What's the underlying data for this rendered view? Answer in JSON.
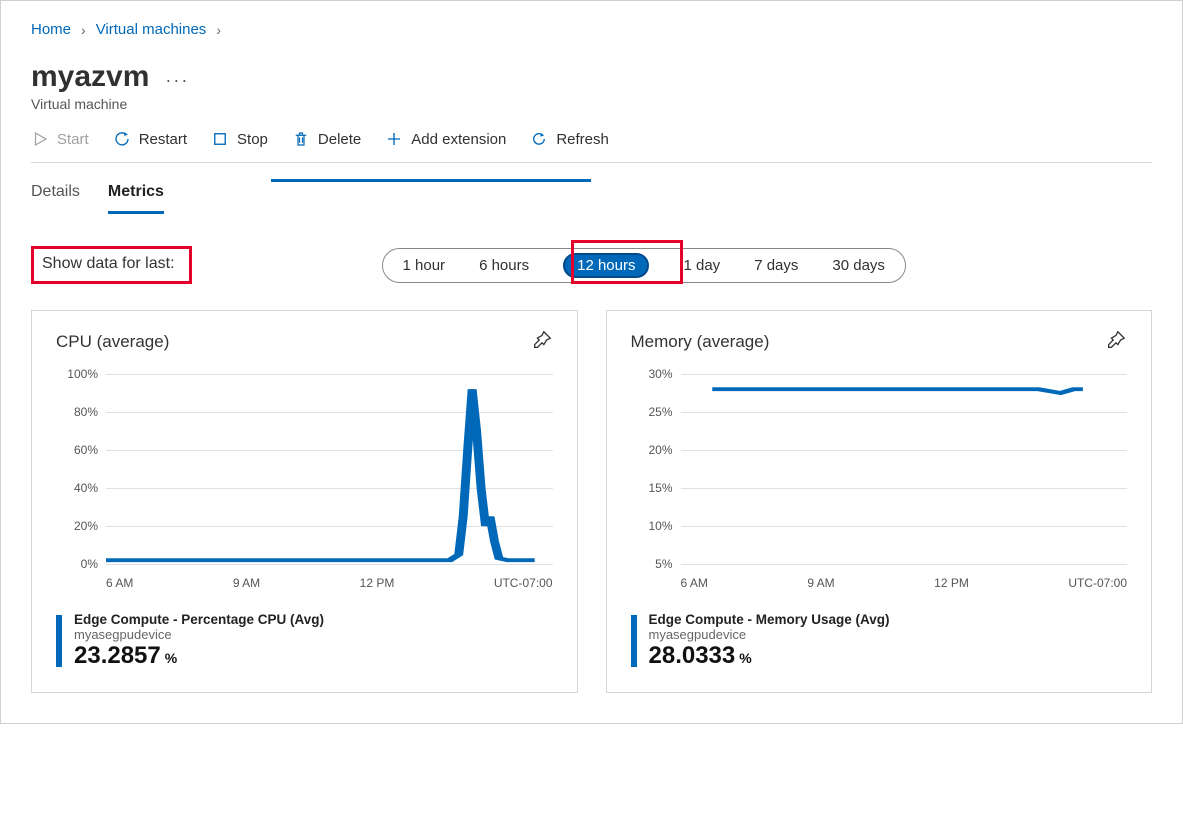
{
  "breadcrumb": {
    "home": "Home",
    "vms": "Virtual machines"
  },
  "header": {
    "title": "myazvm",
    "subtitle": "Virtual machine"
  },
  "toolbar": {
    "start": "Start",
    "restart": "Restart",
    "stop": "Stop",
    "delete": "Delete",
    "add_extension": "Add extension",
    "refresh": "Refresh"
  },
  "tabs": {
    "details": "Details",
    "metrics": "Metrics"
  },
  "timerange": {
    "label": "Show data for last:",
    "opts": {
      "h1": "1 hour",
      "h6": "6 hours",
      "h12": "12 hours",
      "d1": "1 day",
      "d7": "7 days",
      "d30": "30 days"
    },
    "selected": "h12"
  },
  "colors": {
    "accent": "#0068b8",
    "highlight_border": "#e4002b",
    "grid": "#e1e1e1",
    "card_border": "#d6d6d6",
    "text_muted": "#666666",
    "text": "#323130"
  },
  "charts": {
    "cpu": {
      "title": "CPU (average)",
      "type": "line",
      "y_ticks": [
        "0%",
        "20%",
        "40%",
        "60%",
        "80%",
        "100%"
      ],
      "y_min": 0,
      "y_max": 100,
      "x_labels": [
        "6 AM",
        "9 AM",
        "12 PM",
        "UTC-07:00"
      ],
      "series_color": "#0068b8",
      "points_pct": [
        [
          0,
          2
        ],
        [
          5,
          2
        ],
        [
          10,
          2
        ],
        [
          15,
          2
        ],
        [
          20,
          2
        ],
        [
          25,
          2
        ],
        [
          30,
          2
        ],
        [
          35,
          2
        ],
        [
          40,
          2
        ],
        [
          45,
          2
        ],
        [
          50,
          2
        ],
        [
          55,
          2
        ],
        [
          60,
          2
        ],
        [
          65,
          2
        ],
        [
          70,
          2
        ],
        [
          75,
          2
        ],
        [
          77,
          2
        ],
        [
          79,
          5
        ],
        [
          80,
          25
        ],
        [
          81,
          60
        ],
        [
          82,
          92
        ],
        [
          83,
          70
        ],
        [
          84,
          40
        ],
        [
          85,
          20
        ],
        [
          86,
          25
        ],
        [
          87,
          12
        ],
        [
          88,
          3
        ],
        [
          90,
          2
        ],
        [
          93,
          2
        ],
        [
          96,
          2
        ]
      ],
      "metric_name": "Edge Compute - Percentage CPU (Avg)",
      "metric_sub": "myasegpudevice",
      "metric_value": "23.2857",
      "metric_unit": "%"
    },
    "memory": {
      "title": "Memory (average)",
      "type": "line",
      "y_ticks": [
        "5%",
        "10%",
        "15%",
        "20%",
        "25%",
        "30%"
      ],
      "y_min": 5,
      "y_max": 30,
      "x_labels": [
        "6 AM",
        "9 AM",
        "12 PM",
        "UTC-07:00"
      ],
      "series_color": "#0068b8",
      "points_pct": [
        [
          7,
          28
        ],
        [
          10,
          28
        ],
        [
          20,
          28
        ],
        [
          30,
          28
        ],
        [
          40,
          28
        ],
        [
          50,
          28
        ],
        [
          60,
          28
        ],
        [
          70,
          28
        ],
        [
          80,
          28
        ],
        [
          85,
          27.5
        ],
        [
          88,
          28
        ],
        [
          90,
          28
        ]
      ],
      "metric_name": "Edge Compute - Memory Usage (Avg)",
      "metric_sub": "myasegpudevice",
      "metric_value": "28.0333",
      "metric_unit": "%"
    }
  }
}
